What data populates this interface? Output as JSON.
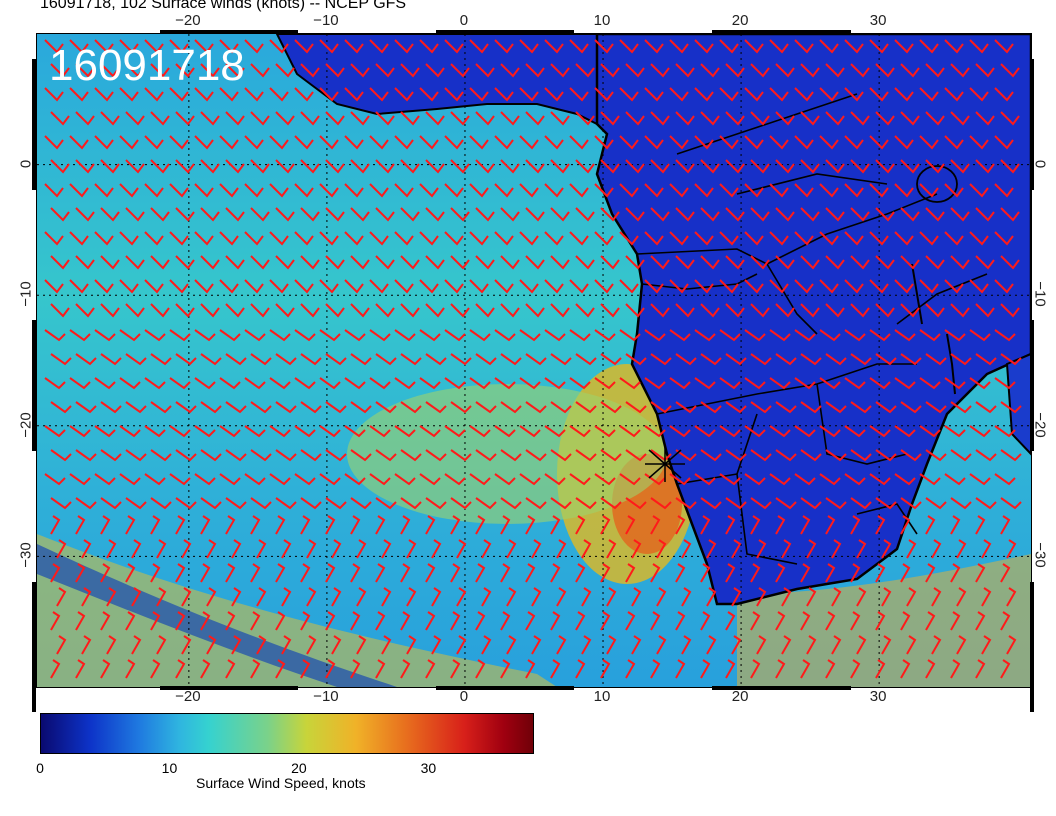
{
  "title": "16091718, 102 Surface winds (knots) -- NCEP GFS",
  "date_stamp": "16091718",
  "map": {
    "lon_range": [
      -31,
      41
    ],
    "lat_range": [
      -40,
      10
    ],
    "lon_ticks": [
      "−20",
      "−10",
      "0",
      "10",
      "20",
      "30"
    ],
    "lat_ticks": [
      "0",
      "−10",
      "−20",
      "−30"
    ],
    "ocean_color": "#2fc0d6",
    "land_color": "#1730c8",
    "barb_color": "#ff1a1a",
    "coast_color": "#000000",
    "marker": "star at Walvis Bay region"
  },
  "colorbar": {
    "label": "Surface Wind Speed, knots",
    "ticks": [
      "0",
      "10",
      "20",
      "30"
    ],
    "range": [
      0,
      38
    ]
  }
}
